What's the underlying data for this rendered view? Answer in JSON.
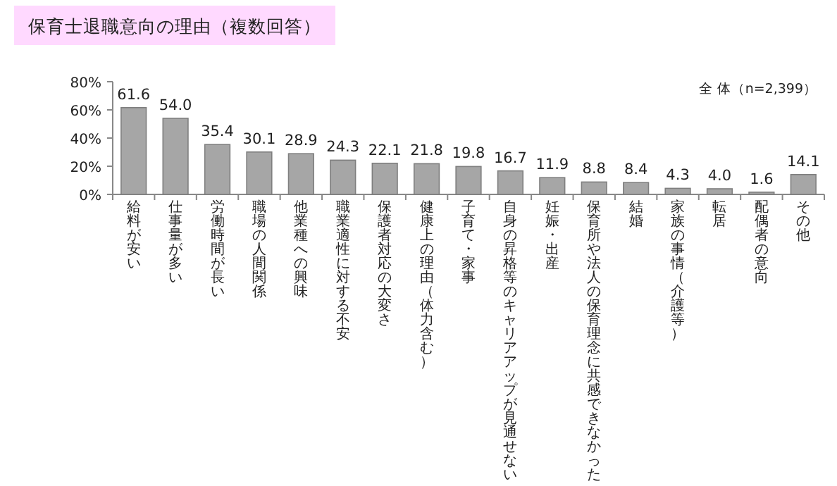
{
  "chart_data": {
    "type": "bar",
    "title": "保育士退職意向の理由（複数回答）",
    "annotations": [
      "全 体（n=2,399）"
    ],
    "categories": [
      "給料が安い",
      "仕事量が多い",
      "労働時間が長い",
      "職場の人間関係",
      "他業種への興味",
      "職業適性に対する不安",
      "保護者対応の大変さ",
      "健康上の理由（体力含む）",
      "子育て・家事",
      "自身の昇格等のキャリアアップが見通せない",
      "妊娠・出産",
      "保育所や法人の保育理念に共感できなかった",
      "結婚",
      "家族の事情（介護等）",
      "転居",
      "配偶者の意向",
      "その他"
    ],
    "values": [
      61.6,
      54.0,
      35.4,
      30.1,
      28.9,
      24.3,
      22.1,
      21.8,
      19.8,
      16.7,
      11.9,
      8.8,
      8.4,
      4.3,
      4.0,
      1.6,
      14.1
    ],
    "value_labels": [
      "61.6",
      "54.0",
      "35.4",
      "30.1",
      "28.9",
      "24.3",
      "22.1",
      "21.8",
      "19.8",
      "16.7",
      "11.9",
      "8.8",
      "8.4",
      "4.3",
      "4.0",
      "1.6",
      "14.1"
    ],
    "color": "#a6a6a6",
    "ylim": [
      0,
      80
    ],
    "yticks": [
      {
        "value": 0,
        "label": "0%"
      },
      {
        "value": 20,
        "label": "20%"
      },
      {
        "value": 40,
        "label": "40%"
      },
      {
        "value": 60,
        "label": "60%"
      },
      {
        "value": 80,
        "label": "80%"
      }
    ],
    "grid": false
  }
}
